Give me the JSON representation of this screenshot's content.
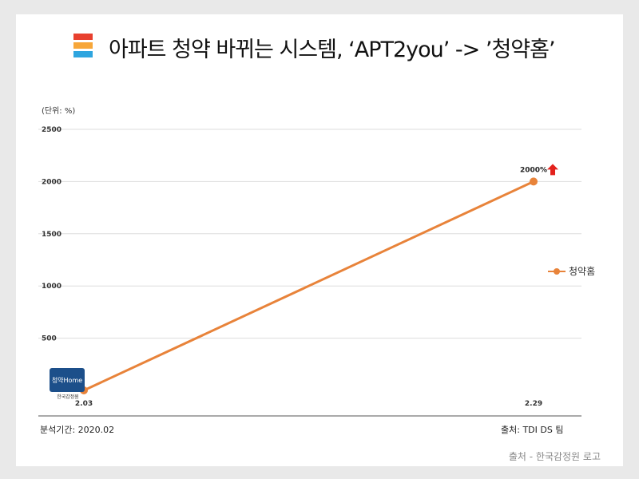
{
  "title": "아파트 청약 바뀌는 시스템, ‘APT2you’ -> ’청약홈’",
  "unit_label": "(단위: %)",
  "footer": {
    "period": "분석기간: 2020.02",
    "source": "출처: TDI DS 팀"
  },
  "credit": "출처 - 한국감정원 로고",
  "logo": {
    "name": "청약Home",
    "sub": "한국감정원"
  },
  "colors": {
    "line": "#E8833A",
    "arrow": "#E3211C",
    "bar1": "#E8402E",
    "bar2": "#F7A73A",
    "bar3": "#2EA5DF"
  },
  "chart_data": {
    "type": "line",
    "x": [
      "2.03",
      "2.29"
    ],
    "series": [
      {
        "name": "청약홈",
        "values": [
          0,
          2000
        ]
      }
    ],
    "yticks": [
      500,
      1000,
      1500,
      2000,
      2500
    ],
    "ylim": [
      0,
      2500
    ],
    "annotation": {
      "text": "2000%",
      "point_index": 1
    },
    "legend": "right"
  }
}
